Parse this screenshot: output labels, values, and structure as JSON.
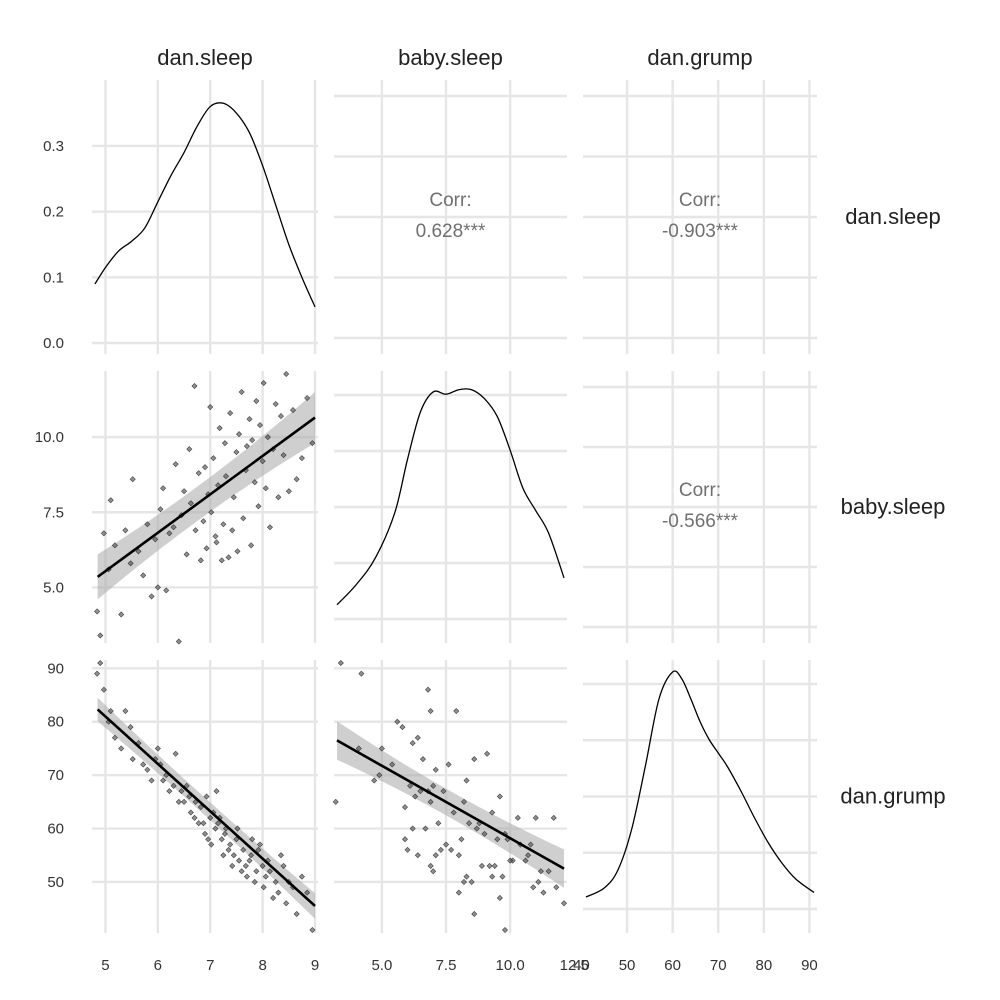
{
  "chart_data": {
    "type": "scatter-matrix",
    "variables": [
      "dan.sleep",
      "baby.sleep",
      "dan.grump"
    ],
    "column_labels": [
      "dan.sleep",
      "baby.sleep",
      "dan.grump"
    ],
    "row_labels": [
      "dan.sleep",
      "baby.sleep",
      "dan.grump"
    ],
    "correlations": [
      {
        "row": 0,
        "col": 1,
        "label": "Corr:",
        "value": "0.628***"
      },
      {
        "row": 0,
        "col": 2,
        "label": "Corr:",
        "value": "-0.903***"
      },
      {
        "row": 1,
        "col": 2,
        "label": "Corr:",
        "value": "-0.566***"
      }
    ],
    "axes": {
      "dan.sleep": {
        "range": [
          4.8,
          9.0
        ],
        "ticks": [
          5,
          6,
          7,
          8,
          9
        ],
        "tick_labels": [
          "5",
          "6",
          "7",
          "8",
          "9"
        ]
      },
      "baby.sleep": {
        "range": [
          3.25,
          12.1
        ],
        "ticks": [
          5.0,
          7.5,
          10.0,
          12.5
        ],
        "tick_labels": [
          "5.0",
          "7.5",
          "10.0",
          "12.5"
        ]
      },
      "dan.grump": {
        "range": [
          41,
          91
        ],
        "ticks": [
          40,
          50,
          60,
          70,
          80,
          90
        ],
        "tick_labels": [
          "40",
          "50",
          "60",
          "70",
          "80",
          "90"
        ]
      },
      "density": {
        "range": [
          0,
          0.37
        ],
        "ticks": [
          0.0,
          0.1,
          0.2,
          0.3
        ],
        "tick_labels": [
          "0.0",
          "0.1",
          "0.2",
          "0.3"
        ]
      }
    },
    "densities": {
      "dan.sleep": {
        "x": [
          4.8,
          5.0,
          5.25,
          5.5,
          5.75,
          6.0,
          6.25,
          6.5,
          6.75,
          7.0,
          7.25,
          7.5,
          7.75,
          8.0,
          8.25,
          8.5,
          8.75,
          9.0
        ],
        "y": [
          0.09,
          0.115,
          0.14,
          0.155,
          0.175,
          0.215,
          0.255,
          0.29,
          0.33,
          0.36,
          0.365,
          0.35,
          0.32,
          0.27,
          0.21,
          0.15,
          0.1,
          0.055
        ]
      },
      "baby.sleep": {
        "x": [
          3.25,
          4.0,
          4.75,
          5.5,
          6.0,
          6.5,
          7.0,
          7.5,
          8.0,
          8.5,
          9.0,
          9.5,
          10.0,
          10.5,
          11.0,
          11.5,
          12.1
        ],
        "y": [
          0.01,
          0.1,
          0.22,
          0.42,
          0.66,
          0.87,
          0.96,
          0.95,
          0.97,
          0.97,
          0.93,
          0.85,
          0.7,
          0.53,
          0.43,
          0.33,
          0.13
        ]
      },
      "dan.grump": {
        "x": [
          41,
          45,
          48,
          51,
          54,
          57,
          60,
          62,
          64,
          66,
          68,
          70,
          72,
          75,
          78,
          81,
          84,
          87,
          91
        ],
        "y": [
          0.0,
          0.04,
          0.12,
          0.3,
          0.58,
          0.88,
          1.0,
          0.97,
          0.88,
          0.78,
          0.7,
          0.64,
          0.58,
          0.47,
          0.35,
          0.24,
          0.15,
          0.08,
          0.02
        ]
      }
    },
    "fits": {
      "1_0": {
        "x": [
          4.85,
          9.0
        ],
        "y": [
          5.35,
          10.65
        ],
        "band_halfwidth": [
          0.75,
          0.35,
          0.85
        ]
      },
      "2_0": {
        "x": [
          4.85,
          9.0
        ],
        "y": [
          82.3,
          45.5
        ],
        "band_halfwidth": [
          2.2,
          1.0,
          2.4
        ]
      },
      "2_1": {
        "x": [
          3.25,
          12.1
        ],
        "y": [
          76.5,
          52.5
        ],
        "band_halfwidth": [
          3.6,
          1.4,
          3.6
        ]
      }
    },
    "points": {
      "dan.sleep": [
        4.84,
        4.9,
        4.97,
        5.06,
        5.1,
        5.18,
        5.3,
        5.38,
        5.48,
        5.52,
        5.63,
        5.72,
        5.8,
        5.88,
        5.95,
        6.0,
        6.05,
        6.1,
        6.16,
        6.22,
        6.3,
        6.34,
        6.4,
        6.45,
        6.5,
        6.55,
        6.6,
        6.63,
        6.7,
        6.72,
        6.78,
        6.82,
        6.87,
        6.9,
        6.93,
        6.96,
        7.0,
        7.02,
        7.06,
        7.1,
        7.12,
        7.15,
        7.18,
        7.22,
        7.25,
        7.28,
        7.3,
        7.35,
        7.38,
        7.42,
        7.45,
        7.5,
        7.52,
        7.55,
        7.6,
        7.63,
        7.68,
        7.7,
        7.75,
        7.78,
        7.8,
        7.85,
        7.88,
        7.92,
        7.95,
        8.0,
        8.02,
        8.06,
        8.1,
        8.14,
        8.2,
        8.25,
        8.3,
        8.35,
        8.4,
        8.45,
        8.5,
        8.58,
        8.65,
        8.75,
        8.85,
        8.95
      ],
      "baby.sleep": [
        4.2,
        3.4,
        6.8,
        5.6,
        7.9,
        6.4,
        4.1,
        6.9,
        5.8,
        8.6,
        6.2,
        5.4,
        7.1,
        4.7,
        6.6,
        5.0,
        7.6,
        8.3,
        4.9,
        6.8,
        7.0,
        9.1,
        3.2,
        7.4,
        8.2,
        6.1,
        9.6,
        7.8,
        11.7,
        6.9,
        8.8,
        5.9,
        7.2,
        9.0,
        6.3,
        8.1,
        11.0,
        7.5,
        9.3,
        6.7,
        6.5,
        8.4,
        10.3,
        5.9,
        7.1,
        9.8,
        8.7,
        6.0,
        10.8,
        6.9,
        8.0,
        9.5,
        6.2,
        10.1,
        11.5,
        7.3,
        8.9,
        9.7,
        10.6,
        6.4,
        9.9,
        8.5,
        11.2,
        7.7,
        10.4,
        9.2,
        11.8,
        8.3,
        10.0,
        7.0,
        9.6,
        11.1,
        8.0,
        10.7,
        9.4,
        12.1,
        8.2,
        10.9,
        8.6,
        9.3,
        11.3,
        9.8
      ],
      "dan.grump": [
        89,
        91,
        86,
        80,
        82,
        77,
        75,
        82,
        79,
        73,
        76,
        72,
        71,
        69,
        73,
        75,
        72,
        69,
        70,
        67,
        68,
        74,
        65,
        67,
        65,
        68,
        66,
        63,
        62,
        65,
        61,
        64,
        61,
        59,
        66,
        58,
        62,
        57,
        63,
        60,
        67,
        61,
        62,
        58,
        55,
        59,
        60,
        56,
        57,
        53,
        55,
        58,
        60,
        54,
        52,
        56,
        53,
        51,
        54,
        55,
        58,
        50,
        52,
        56,
        57,
        53,
        49,
        51,
        54,
        52,
        47,
        50,
        48,
        55,
        53,
        46,
        50,
        49,
        44,
        51,
        48,
        41
      ]
    }
  }
}
